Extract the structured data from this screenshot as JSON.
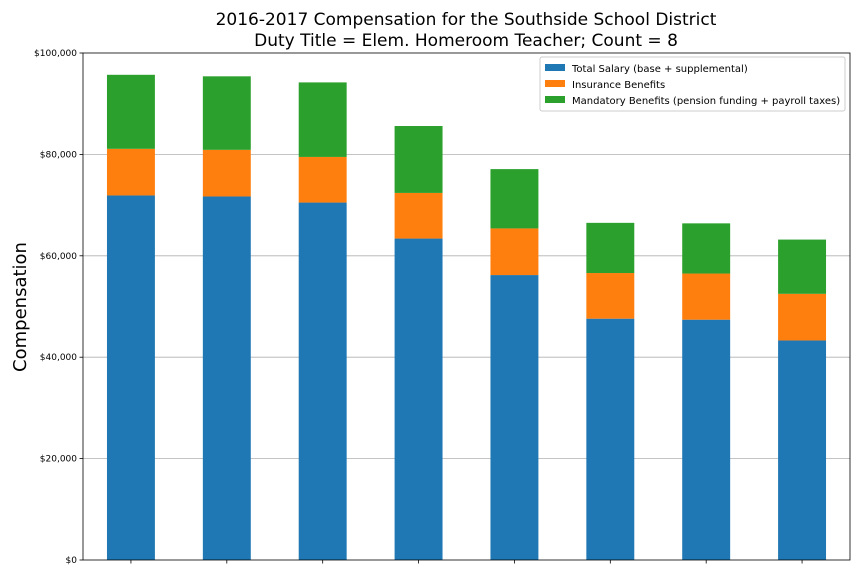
{
  "chart_data": {
    "type": "bar",
    "stacked": true,
    "title": "2016-2017 Compensation for the Southside School District",
    "subtitle": "Duty Title = Elem. Homeroom Teacher; Count = 8",
    "xlabel": "",
    "ylabel": "Compensation",
    "categories": [
      "",
      "",
      "",
      "",
      "",
      "",
      "",
      ""
    ],
    "ylim": [
      0,
      100000
    ],
    "yticks": [
      0,
      20000,
      40000,
      60000,
      80000,
      100000
    ],
    "ytick_labels": [
      "$0",
      "$20,000",
      "$40,000",
      "$60,000",
      "$80,000",
      "$100,000"
    ],
    "grid": "y",
    "legend_position": "top-right",
    "series": [
      {
        "name": "Total Salary (base + supplemental)",
        "color": "#1f77b4",
        "values": [
          71900,
          71700,
          70500,
          63400,
          56200,
          47600,
          47400,
          43300
        ]
      },
      {
        "name": "Insurance Benefits",
        "color": "#ff7f0e",
        "values": [
          9200,
          9200,
          9000,
          9000,
          9200,
          9000,
          9100,
          9200
        ]
      },
      {
        "name": "Mandatory Benefits (pension funding + payroll taxes)",
        "color": "#2ca02c",
        "values": [
          14600,
          14500,
          14700,
          13200,
          11700,
          9900,
          9900,
          10700
        ]
      }
    ]
  }
}
